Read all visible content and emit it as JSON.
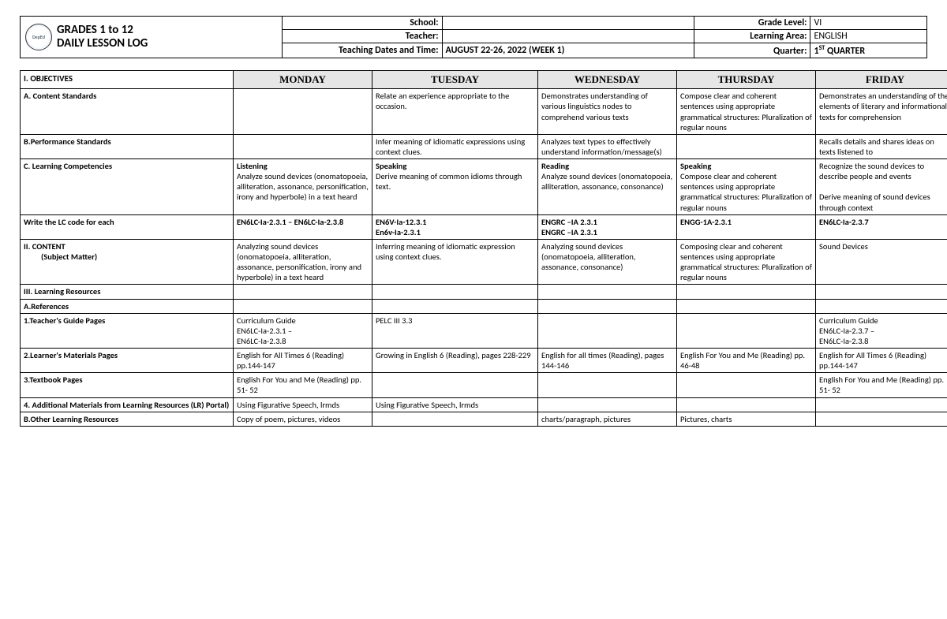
{
  "doc_title_line1": "GRADES 1 to 12",
  "doc_title_line2": "DAILY LESSON LOG",
  "header": {
    "school_label": "School:",
    "school_value": "",
    "teacher_label": "Teacher:",
    "teacher_value": "",
    "dates_label": "Teaching Dates and Time:",
    "dates_value": "AUGUST 22-26, 2022 (WEEK 1)",
    "grade_label": "Grade Level:",
    "grade_value": "VI",
    "area_label": "Learning Area:",
    "area_value": "ENGLISH",
    "quarter_label": "Quarter:",
    "quarter_value_html": "1<span class='sup'>ST</span> QUARTER"
  },
  "days": [
    "MONDAY",
    "TUESDAY",
    "WEDNESDAY",
    "THURSDAY",
    "FRIDAY"
  ],
  "section_objectives": "I. OBJECTIVES",
  "rows": {
    "content_std": {
      "label": "A. Content Standards",
      "cells": [
        "",
        "Relate an experience appropriate to the occasion.",
        "Demonstrates understanding of various linguistics nodes to comprehend various texts",
        "Compose clear and coherent sentences using appropriate grammatical structures: Pluralization of regular nouns",
        "Demonstrates an understanding of the elements of literary and informational texts for comprehension"
      ]
    },
    "perf_std": {
      "label": "B.Performance Standards",
      "cells": [
        "",
        "Infer meaning of idiomatic expressions using context clues.",
        "Analyzes text types to effectively understand information/message(s)",
        "",
        "Recalls details and shares ideas on texts listened to"
      ]
    },
    "learn_comp": {
      "label": "C. Learning Competencies",
      "cells": [
        "<b>Listening</b><br>Analyze sound devices (onomatopoeia, alliteration, assonance, personification, irony and hyperbole) in a text heard",
        "<b>Speaking</b><br>Derive meaning of common idioms through text.",
        "<b>Reading</b><br>Analyze sound devices (onomatopoeia, alliteration, assonance, consonance)",
        "<b>Speaking</b><br>Compose clear and coherent sentences using appropriate grammatical structures: Pluralization of regular nouns",
        "Recognize the sound devices to describe people and events<br><br>Derive meaning of sound devices through context"
      ]
    },
    "lc_code": {
      "label": "Write the LC code for each",
      "cells": [
        "<b>EN6LC-Ia-2.3.1 – EN6LC-Ia-2.3.8</b>",
        "<b>EN6V-Ia-12.3.1<br>En6v-Ia-2.3.1</b>",
        "<b>ENGRC –IA 2.3.1<br>ENGRC –IA 2.3.1</b>",
        "<b>ENGG-1A-2.3.1</b>",
        "<b>EN6LC-Ia-2.3.7</b>"
      ]
    },
    "content": {
      "label": "II. CONTENT",
      "sublabel": "(Subject Matter)",
      "cells": [
        "Analyzing sound devices (onomatopoeia, alliteration, assonance, personification, irony and hyperbole) in a text heard",
        "Inferring meaning of idiomatic expression using context clues.",
        "Analyzing sound devices (onomatopoeia, alliteration, assonance, consonance)",
        "Composing clear and coherent sentences using appropriate grammatical structures: Pluralization of regular nouns",
        "Sound Devices"
      ]
    },
    "resources": {
      "label": "III. Learning Resources",
      "cells": [
        "",
        "",
        "",
        "",
        ""
      ]
    },
    "refs": {
      "label": "A.References",
      "cells": [
        "",
        "",
        "",
        "",
        ""
      ]
    },
    "tg": {
      "label": "1.Teacher's Guide Pages",
      "cells": [
        "Curriculum Guide<br>EN6LC-Ia-2.3.1 –<br>EN6LC-Ia-2.3.8",
        "PELC III 3.3",
        "",
        "",
        "Curriculum Guide<br>EN6LC-Ia-2.3.7 –<br>EN6LC-Ia-2.3.8"
      ]
    },
    "lm": {
      "label": "2.Learner's Materials Pages",
      "cells": [
        "English for All Times 6 (Reading) pp.144-147",
        "Growing in English 6 (Reading), pages 228-229",
        "English for all times (Reading), pages 144-146",
        "English For You and Me (Reading) pp. 46-48",
        "English for All Times 6 (Reading) pp.144-147"
      ]
    },
    "tb": {
      "label": "3.Textbook Pages",
      "cells": [
        "English For You and Me (Reading) pp. 51- 52",
        "",
        "",
        "",
        "English For You and Me (Reading) pp. 51- 52"
      ]
    },
    "addl": {
      "label": "4. Additional Materials from Learning Resources (LR) Portal)",
      "cells": [
        "Using Figurative Speech, lrmds",
        "Using Figurative Speech, lrmds",
        "",
        "",
        ""
      ]
    },
    "other": {
      "label": "B.Other Learning Resources",
      "cells": [
        "Copy of poem, pictures, videos",
        "",
        "charts/paragraph, pictures",
        "Pictures, charts",
        ""
      ]
    }
  }
}
